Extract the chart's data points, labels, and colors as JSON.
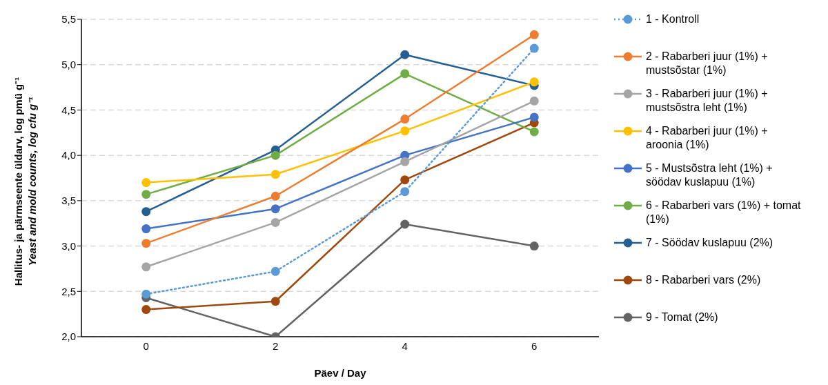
{
  "chart_data": {
    "type": "line",
    "xlabel": "Päev / Day",
    "ylabel": "Hallitus- ja pärmseente  üldarv, log pmü g⁻¹\nYeast and mold counts, log cfu g⁻¹",
    "categories": [
      "0",
      "2",
      "4",
      "6"
    ],
    "ylim": [
      2,
      5.5
    ],
    "yticks": [
      {
        "value": 2,
        "label": "2,0"
      },
      {
        "value": 2.5,
        "label": "2,5"
      },
      {
        "value": 3,
        "label": "3,0"
      },
      {
        "value": 3.5,
        "label": "3,5"
      },
      {
        "value": 4,
        "label": "4,0"
      },
      {
        "value": 4.5,
        "label": "4,5"
      },
      {
        "value": 5,
        "label": "5,0"
      },
      {
        "value": 5.5,
        "label": "5,5"
      }
    ],
    "grid": "y",
    "legend": "right",
    "marker": "circle",
    "line_style": "solid",
    "series": [
      {
        "name": "1 - Kontroll",
        "color": "#5b9bd5",
        "line_style": "dotted",
        "values": [
          2.47,
          2.72,
          3.6,
          5.18
        ]
      },
      {
        "name": "2 - Rabarberi juur (1%) + mustsõstar (1%)",
        "color": "#ed7d31",
        "values": [
          3.03,
          3.55,
          4.4,
          5.33
        ]
      },
      {
        "name": "3 - Rabarberi juur (1%) + mustsõstra leht (1%)",
        "color": "#a5a5a5",
        "values": [
          2.77,
          3.26,
          3.93,
          4.6
        ]
      },
      {
        "name": "4 - Rabarberi juur (1%) + aroonia (1%)",
        "color": "#ffc000",
        "values": [
          3.7,
          3.79,
          4.27,
          4.81
        ]
      },
      {
        "name": "5 - Mustsõstra leht (1%) + söödav kuslapuu (1%)",
        "color": "#4472c4",
        "values": [
          3.19,
          3.41,
          4.0,
          4.42
        ]
      },
      {
        "name": "6 - Rabarberi vars (1%) + tomat (1%)",
        "color": "#70ad47",
        "values": [
          3.57,
          4.0,
          4.9,
          4.26
        ]
      },
      {
        "name": "7 - Söödav kuslapuu (2%)",
        "color": "#255e91",
        "values": [
          3.38,
          4.06,
          5.11,
          4.77
        ]
      },
      {
        "name": "8 - Rabarberi vars (2%)",
        "color": "#9e480e",
        "values": [
          2.3,
          2.39,
          3.73,
          4.36
        ]
      },
      {
        "name": "9 - Tomat (2%)",
        "color": "#636363",
        "values": [
          2.43,
          2.0,
          3.24,
          3.0
        ]
      }
    ]
  }
}
